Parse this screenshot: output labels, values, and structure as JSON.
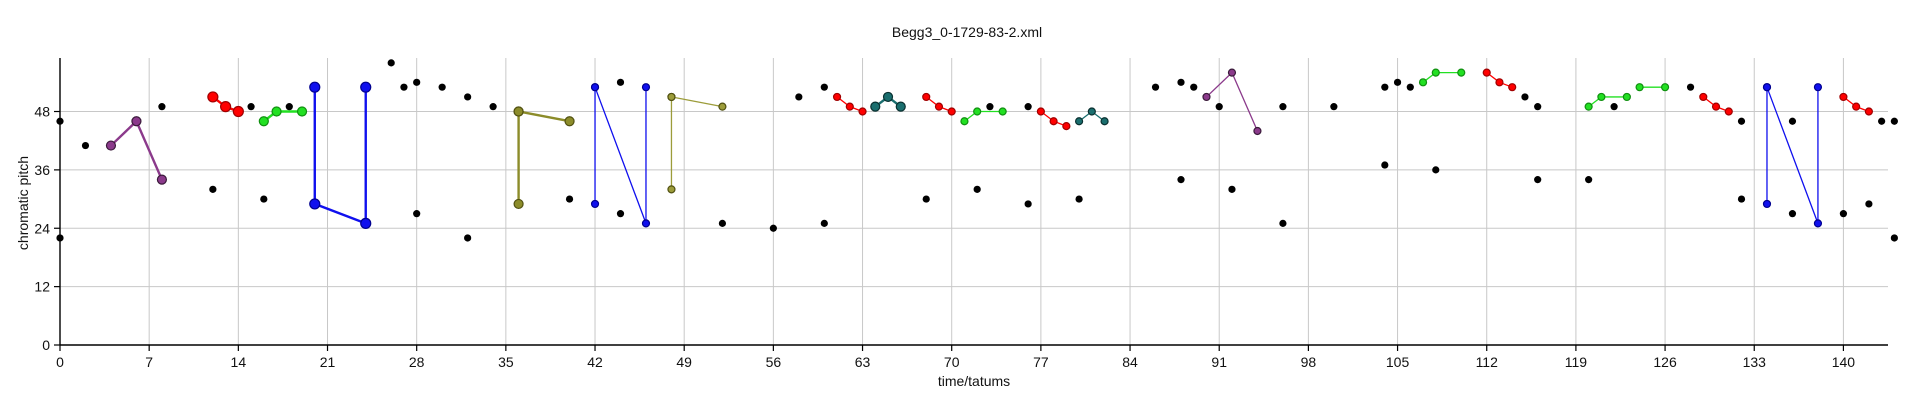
{
  "chart_data": {
    "type": "scatter",
    "title": "Begg3_0-1729-83-2.xml",
    "xlabel": "time/tatums",
    "ylabel": "chromatic pitch",
    "xlim": [
      0,
      143.5
    ],
    "ylim": [
      0,
      59
    ],
    "xticks": [
      0,
      7,
      14,
      21,
      28,
      35,
      42,
      49,
      56,
      63,
      70,
      77,
      84,
      91,
      98,
      105,
      112,
      119,
      126,
      133,
      140
    ],
    "yticks": [
      0,
      12,
      24,
      36,
      48
    ],
    "grid": true,
    "notes": [
      {
        "x": 0,
        "y": 46
      },
      {
        "x": 0,
        "y": 22
      },
      {
        "x": 2,
        "y": 41
      },
      {
        "x": 8,
        "y": 49
      },
      {
        "x": 12,
        "y": 32
      },
      {
        "x": 15,
        "y": 49
      },
      {
        "x": 16,
        "y": 30
      },
      {
        "x": 18,
        "y": 49
      },
      {
        "x": 26,
        "y": 58
      },
      {
        "x": 27,
        "y": 53
      },
      {
        "x": 28,
        "y": 54
      },
      {
        "x": 28,
        "y": 27
      },
      {
        "x": 30,
        "y": 53
      },
      {
        "x": 32,
        "y": 51
      },
      {
        "x": 32,
        "y": 22
      },
      {
        "x": 34,
        "y": 49
      },
      {
        "x": 40,
        "y": 30
      },
      {
        "x": 44,
        "y": 54
      },
      {
        "x": 44,
        "y": 27
      },
      {
        "x": 52,
        "y": 25
      },
      {
        "x": 56,
        "y": 24
      },
      {
        "x": 58,
        "y": 51
      },
      {
        "x": 60,
        "y": 53
      },
      {
        "x": 60,
        "y": 25
      },
      {
        "x": 68,
        "y": 30
      },
      {
        "x": 72,
        "y": 32
      },
      {
        "x": 73,
        "y": 49
      },
      {
        "x": 76,
        "y": 49
      },
      {
        "x": 76,
        "y": 29
      },
      {
        "x": 80,
        "y": 30
      },
      {
        "x": 86,
        "y": 53
      },
      {
        "x": 88,
        "y": 54
      },
      {
        "x": 88,
        "y": 34
      },
      {
        "x": 89,
        "y": 53
      },
      {
        "x": 91,
        "y": 49
      },
      {
        "x": 92,
        "y": 32
      },
      {
        "x": 96,
        "y": 49
      },
      {
        "x": 96,
        "y": 25
      },
      {
        "x": 100,
        "y": 49
      },
      {
        "x": 104,
        "y": 53
      },
      {
        "x": 104,
        "y": 37
      },
      {
        "x": 105,
        "y": 54
      },
      {
        "x": 106,
        "y": 53
      },
      {
        "x": 108,
        "y": 36
      },
      {
        "x": 115,
        "y": 51
      },
      {
        "x": 116,
        "y": 49
      },
      {
        "x": 116,
        "y": 34
      },
      {
        "x": 120,
        "y": 34
      },
      {
        "x": 122,
        "y": 49
      },
      {
        "x": 128,
        "y": 53
      },
      {
        "x": 132,
        "y": 46
      },
      {
        "x": 132,
        "y": 30
      },
      {
        "x": 136,
        "y": 46
      },
      {
        "x": 136,
        "y": 27
      },
      {
        "x": 140,
        "y": 27
      },
      {
        "x": 142,
        "y": 29
      },
      {
        "x": 143,
        "y": 46
      },
      {
        "x": 144,
        "y": 46
      },
      {
        "x": 144,
        "y": 22
      }
    ],
    "patterns": [
      {
        "color": "#8b3a8b",
        "size": 4.5,
        "stroke": "#3a1a3a",
        "points": [
          {
            "x": 4,
            "y": 41
          },
          {
            "x": 6,
            "y": 46
          },
          {
            "x": 8,
            "y": 34
          }
        ]
      },
      {
        "color": "#ff0000",
        "size": 5,
        "stroke": "#a00000",
        "points": [
          {
            "x": 12,
            "y": 51
          },
          {
            "x": 13,
            "y": 49
          },
          {
            "x": 14,
            "y": 48
          }
        ]
      },
      {
        "color": "#22e022",
        "size": 4.5,
        "stroke": "#109010",
        "points": [
          {
            "x": 16,
            "y": 46
          },
          {
            "x": 17,
            "y": 48
          },
          {
            "x": 19,
            "y": 48
          }
        ]
      },
      {
        "color": "#1010ee",
        "size": 5,
        "stroke": "#000090",
        "points": [
          {
            "x": 20,
            "y": 53
          },
          {
            "x": 20,
            "y": 29
          },
          {
            "x": 24,
            "y": 25
          },
          {
            "x": 24,
            "y": 53
          }
        ]
      },
      {
        "color": "#8c8c2a",
        "size": 4.5,
        "stroke": "#505010",
        "points": [
          {
            "x": 36,
            "y": 48
          },
          {
            "x": 36,
            "y": 29
          },
          {
            "x": 36,
            "y": 48
          },
          {
            "x": 40,
            "y": 46
          }
        ]
      },
      {
        "color": "#1010ee",
        "size": 3.5,
        "stroke": "#000090",
        "points": [
          {
            "x": 42,
            "y": 53
          },
          {
            "x": 42,
            "y": 29
          },
          {
            "x": 42,
            "y": 53
          },
          {
            "x": 46,
            "y": 25
          },
          {
            "x": 46,
            "y": 53
          }
        ]
      },
      {
        "color": "#9c9c3a",
        "size": 3.5,
        "stroke": "#505010",
        "points": [
          {
            "x": 48,
            "y": 51
          },
          {
            "x": 48,
            "y": 32
          },
          {
            "x": 48,
            "y": 51
          },
          {
            "x": 52,
            "y": 49
          }
        ]
      },
      {
        "color": "#ff0000",
        "size": 3.5,
        "stroke": "#a00000",
        "points": [
          {
            "x": 61,
            "y": 51
          },
          {
            "x": 62,
            "y": 49
          },
          {
            "x": 63,
            "y": 48
          }
        ]
      },
      {
        "color": "#1a6e6e",
        "size": 4.5,
        "stroke": "#0a3030",
        "points": [
          {
            "x": 64,
            "y": 49
          },
          {
            "x": 65,
            "y": 51
          },
          {
            "x": 66,
            "y": 49
          }
        ]
      },
      {
        "color": "#ff0000",
        "size": 3.5,
        "stroke": "#a00000",
        "points": [
          {
            "x": 68,
            "y": 51
          },
          {
            "x": 69,
            "y": 49
          },
          {
            "x": 70,
            "y": 48
          }
        ]
      },
      {
        "color": "#22e022",
        "size": 3.5,
        "stroke": "#109010",
        "points": [
          {
            "x": 71,
            "y": 46
          },
          {
            "x": 72,
            "y": 48
          },
          {
            "x": 74,
            "y": 48
          }
        ]
      },
      {
        "color": "#ff0000",
        "size": 3.5,
        "stroke": "#a00000",
        "points": [
          {
            "x": 77,
            "y": 48
          },
          {
            "x": 78,
            "y": 46
          },
          {
            "x": 79,
            "y": 45
          }
        ]
      },
      {
        "color": "#1a6e6e",
        "size": 3.5,
        "stroke": "#0a3030",
        "points": [
          {
            "x": 80,
            "y": 46
          },
          {
            "x": 81,
            "y": 48
          },
          {
            "x": 82,
            "y": 46
          }
        ]
      },
      {
        "color": "#8b3a8b",
        "size": 3.5,
        "stroke": "#3a1a3a",
        "points": [
          {
            "x": 90,
            "y": 51
          },
          {
            "x": 92,
            "y": 56
          },
          {
            "x": 94,
            "y": 44
          }
        ]
      },
      {
        "color": "#22e022",
        "size": 3.5,
        "stroke": "#109010",
        "points": [
          {
            "x": 107,
            "y": 54
          },
          {
            "x": 108,
            "y": 56
          },
          {
            "x": 110,
            "y": 56
          }
        ]
      },
      {
        "color": "#ff0000",
        "size": 3.5,
        "stroke": "#a00000",
        "points": [
          {
            "x": 112,
            "y": 56
          },
          {
            "x": 113,
            "y": 54
          },
          {
            "x": 114,
            "y": 53
          }
        ]
      },
      {
        "color": "#22e022",
        "size": 3.5,
        "stroke": "#109010",
        "points": [
          {
            "x": 120,
            "y": 49
          },
          {
            "x": 121,
            "y": 51
          },
          {
            "x": 123,
            "y": 51
          }
        ]
      },
      {
        "color": "#22e022",
        "size": 3.5,
        "stroke": "#109010",
        "points": [
          {
            "x": 124,
            "y": 53
          },
          {
            "x": 126,
            "y": 53
          }
        ]
      },
      {
        "color": "#ff0000",
        "size": 3.5,
        "stroke": "#a00000",
        "points": [
          {
            "x": 129,
            "y": 51
          },
          {
            "x": 130,
            "y": 49
          },
          {
            "x": 131,
            "y": 48
          }
        ]
      },
      {
        "color": "#1010ee",
        "size": 3.5,
        "stroke": "#000090",
        "points": [
          {
            "x": 134,
            "y": 53
          },
          {
            "x": 134,
            "y": 29
          },
          {
            "x": 134,
            "y": 53
          },
          {
            "x": 138,
            "y": 25
          },
          {
            "x": 138,
            "y": 53
          }
        ]
      },
      {
        "color": "#ff0000",
        "size": 3.5,
        "stroke": "#a00000",
        "points": [
          {
            "x": 140,
            "y": 51
          },
          {
            "x": 141,
            "y": 49
          },
          {
            "x": 142,
            "y": 48
          }
        ]
      }
    ]
  }
}
